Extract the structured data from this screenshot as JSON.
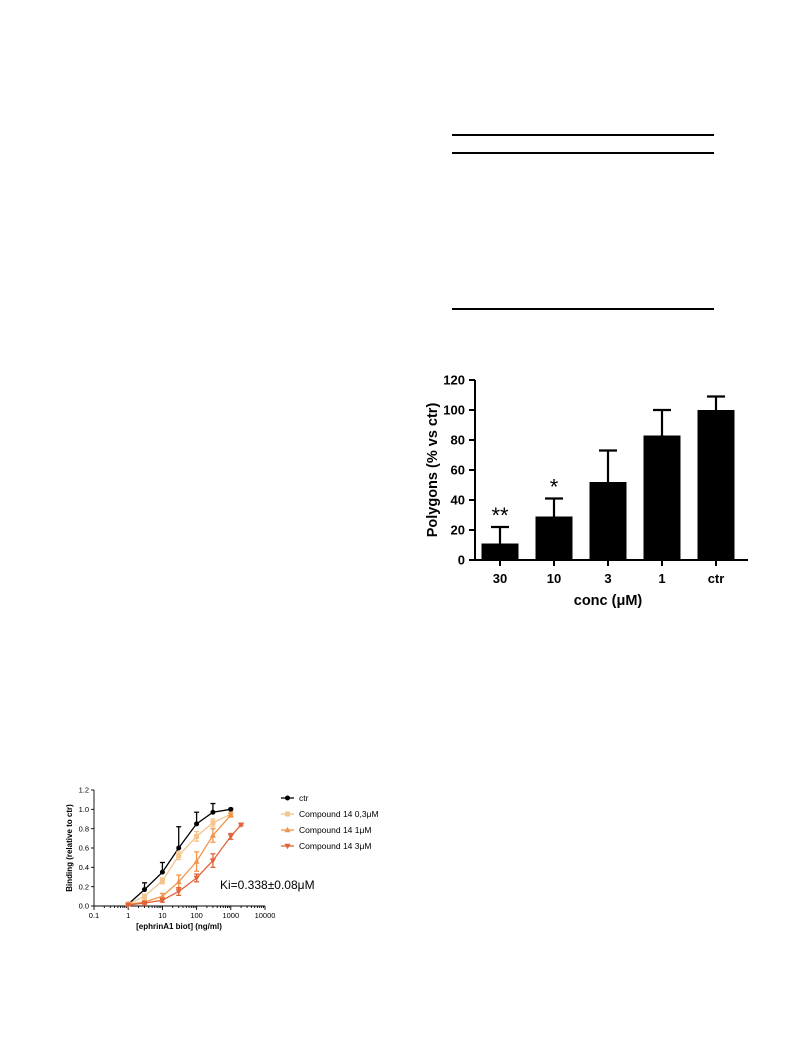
{
  "chart_data": [
    {
      "type": "bar",
      "categories": [
        "30",
        "10",
        "3",
        "1",
        "ctr"
      ],
      "values": [
        11,
        29,
        52,
        83,
        100
      ],
      "error_upper": [
        22,
        41,
        73,
        100,
        109
      ],
      "significance": [
        "**",
        "*",
        "",
        "",
        ""
      ],
      "xlabel": "conc (μM)",
      "ylabel": "Polygons (% vs ctr)",
      "ylim": [
        0,
        120
      ],
      "yticks": [
        "0",
        "20",
        "40",
        "60",
        "80",
        "100",
        "120"
      ],
      "bar_color": "#000000",
      "grid": false
    },
    {
      "type": "line",
      "xscale": "log",
      "xlim": [
        0.1,
        10000
      ],
      "ylim": [
        0,
        1.2
      ],
      "xticks": [
        "0.1",
        "1",
        "10",
        "100",
        "1000",
        "10000"
      ],
      "yticks": [
        "0.0",
        "0.2",
        "0.4",
        "0.6",
        "0.8",
        "1.0",
        "1.2"
      ],
      "xlabel": "[ephrinA1 biot] (ng/ml)",
      "ylabel": "Binding (relative to ctr)",
      "legend_position": "right",
      "grid": false,
      "annotation": "Ki=0.338±0.08μM",
      "series": [
        {
          "name": "ctr",
          "color": "#000000",
          "marker": "circle",
          "error_direction": "up",
          "x": [
            1,
            3,
            10,
            30,
            100,
            300,
            1000
          ],
          "y": [
            0.02,
            0.17,
            0.35,
            0.6,
            0.85,
            0.97,
            1.0
          ],
          "err": [
            0.01,
            0.07,
            0.1,
            0.22,
            0.12,
            0.09,
            0.01
          ]
        },
        {
          "name": "Compound 14 0,3μM",
          "color": "#f5c48c",
          "marker": "square",
          "error_direction": "both",
          "x": [
            1,
            3,
            10,
            30,
            100,
            300,
            1000
          ],
          "y": [
            0.02,
            0.1,
            0.26,
            0.52,
            0.72,
            0.86,
            0.95
          ],
          "err": [
            0.01,
            0.02,
            0.03,
            0.04,
            0.05,
            0.04,
            0.02
          ]
        },
        {
          "name": "Compound 14 1μM",
          "color": "#f0954a",
          "marker": "triangle-up",
          "error_direction": "both",
          "x": [
            1,
            3,
            10,
            30,
            100,
            300,
            1000
          ],
          "y": [
            0.02,
            0.04,
            0.1,
            0.25,
            0.46,
            0.73,
            0.94
          ],
          "err": [
            0.01,
            0.02,
            0.03,
            0.07,
            0.1,
            0.07,
            0.02
          ]
        },
        {
          "name": "Compound 14 3μM",
          "color": "#e0643a",
          "marker": "triangle-down",
          "error_direction": "both",
          "x": [
            1,
            3,
            10,
            30,
            100,
            300,
            1000,
            2000
          ],
          "y": [
            0.01,
            0.03,
            0.06,
            0.15,
            0.29,
            0.47,
            0.72,
            0.84
          ],
          "err": [
            0.01,
            0.01,
            0.02,
            0.04,
            0.04,
            0.07,
            0.03,
            0.01
          ]
        }
      ]
    }
  ]
}
